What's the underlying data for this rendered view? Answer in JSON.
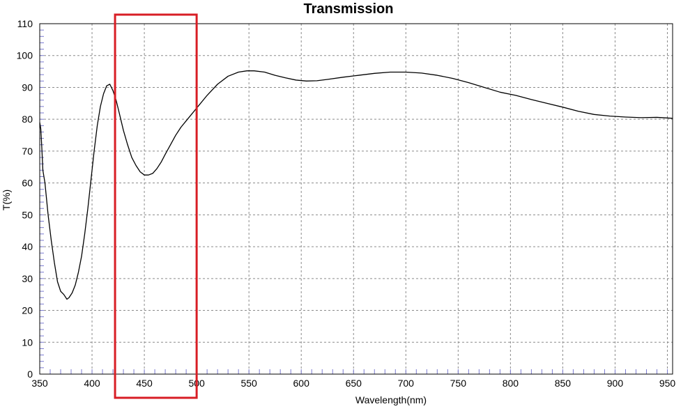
{
  "chart_data": {
    "type": "line",
    "title": "Transmission",
    "xlabel": "Wavelength(nm)",
    "ylabel": "T(%)",
    "xlim": [
      350,
      955
    ],
    "ylim": [
      0,
      110
    ],
    "x_ticks": [
      350,
      400,
      450,
      500,
      550,
      600,
      650,
      700,
      750,
      800,
      850,
      900,
      950
    ],
    "y_ticks": [
      0,
      10,
      20,
      30,
      40,
      50,
      60,
      70,
      80,
      90,
      100,
      110
    ],
    "grid": true,
    "series": [
      {
        "color": "#000000",
        "x": [
          350,
          351,
          352,
          353,
          355,
          358,
          361,
          364,
          367,
          370,
          373,
          376,
          378,
          381,
          384,
          387,
          390,
          393,
          396,
          399,
          402,
          405,
          408,
          411,
          414,
          417,
          420,
          423,
          426,
          430,
          434,
          438,
          442,
          446,
          450,
          454,
          458,
          462,
          466,
          470,
          475,
          480,
          485,
          490,
          495,
          500,
          510,
          520,
          530,
          540,
          548,
          555,
          565,
          575,
          585,
          595,
          605,
          615,
          625,
          640,
          655,
          670,
          685,
          700,
          715,
          730,
          745,
          760,
          775,
          790,
          805,
          820,
          835,
          850,
          865,
          880,
          895,
          910,
          925,
          940,
          955
        ],
        "y": [
          79,
          77,
          71,
          64,
          60,
          50,
          42,
          35,
          29,
          26,
          25,
          23.5,
          24,
          25.5,
          28,
          32,
          37,
          44,
          52,
          61,
          70,
          78,
          84,
          88,
          90.5,
          91,
          89,
          86,
          82,
          76.5,
          72,
          68,
          65.5,
          63.5,
          62.5,
          62.5,
          63,
          64.5,
          66.5,
          69,
          72,
          75,
          77.5,
          79.5,
          81.5,
          83.5,
          87.5,
          91,
          93.5,
          94.8,
          95.2,
          95.2,
          94.8,
          93.8,
          93,
          92.3,
          92,
          92.1,
          92.5,
          93.2,
          93.8,
          94.4,
          94.8,
          94.8,
          94.5,
          93.8,
          92.8,
          91.5,
          90,
          88.5,
          87.5,
          86.2,
          85,
          83.8,
          82.5,
          81.5,
          81,
          80.7,
          80.5,
          80.6,
          80.3
        ]
      }
    ],
    "annotations": [
      {
        "type": "rectangle",
        "x_range": [
          422,
          500
        ],
        "color": "#d81e25"
      }
    ]
  }
}
